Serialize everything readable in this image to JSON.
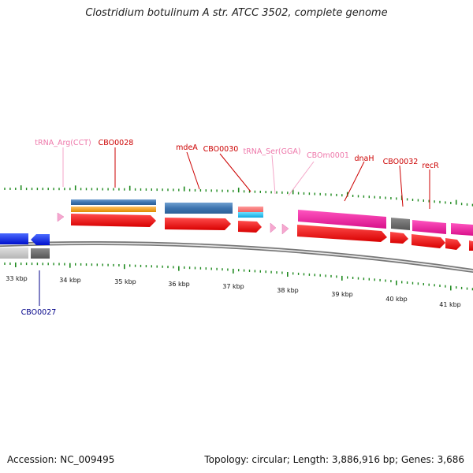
{
  "title": "Clostridium botulinum A str. ATCC 3502, complete genome",
  "footer": {
    "accession": "Accession: NC_009495",
    "topology": "Topology: circular; Length: 3,886,916 bp; Genes: 3,686"
  },
  "colors": {
    "backbone": "#8a8a8a",
    "tick": "#1f8a1f",
    "label_gene": "#cc0000",
    "label_rna": "#ee77aa",
    "label_minus": "#000088"
  },
  "scale_labels": [
    "33 kbp",
    "34 kbp",
    "35 kbp",
    "36 kbp",
    "37 kbp",
    "38 kbp",
    "39 kbp",
    "40 kbp",
    "41 kbp"
  ],
  "feature_labels": [
    {
      "text": "tRNA_Arg(CCT)",
      "kind": "rna"
    },
    {
      "text": "CBO0028",
      "kind": "gene"
    },
    {
      "text": "mdeA",
      "kind": "gene"
    },
    {
      "text": "CBO0030",
      "kind": "gene"
    },
    {
      "text": "tRNA_Ser(GGA)",
      "kind": "rna"
    },
    {
      "text": "CBOm0001",
      "kind": "rna"
    },
    {
      "text": "dnaH",
      "kind": "gene"
    },
    {
      "text": "CBO0032",
      "kind": "gene"
    },
    {
      "text": "recR",
      "kind": "gene"
    },
    {
      "text": "CBO0027",
      "kind": "minus"
    }
  ]
}
